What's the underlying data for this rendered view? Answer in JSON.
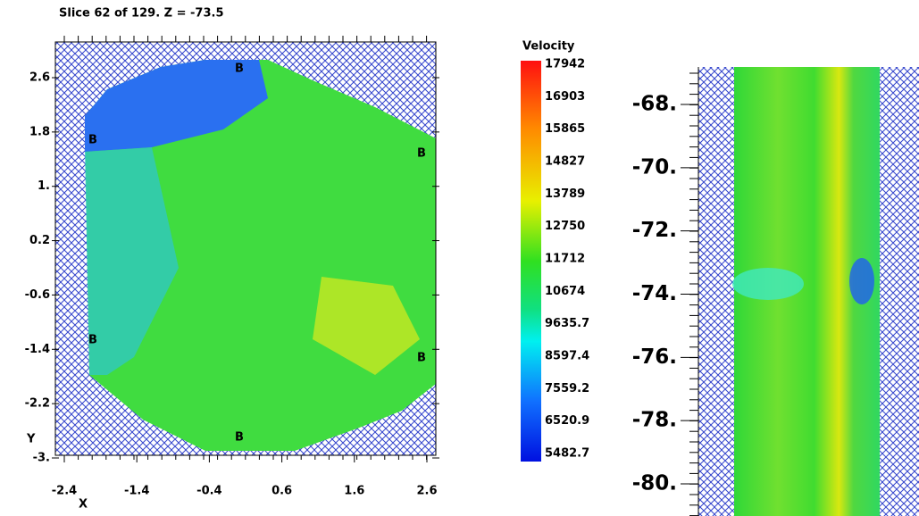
{
  "left_panel": {
    "title": "Slice 62 of 129.  Z = -73.5",
    "x_label": "X",
    "y_label": "Y",
    "x_ticks": [
      "-2.4",
      "-1.4",
      "-0.4",
      "0.6",
      "1.6",
      "2.6"
    ],
    "y_ticks": [
      "2.6",
      "1.8",
      "1.",
      "0.2",
      "-0.6",
      "-1.4",
      "-2.2",
      "-3."
    ],
    "markers": [
      "B",
      "B",
      "B",
      "B",
      "B",
      "B"
    ]
  },
  "colorbar": {
    "title": "Velocity",
    "labels": [
      "17942",
      "16903",
      "15865",
      "14827",
      "13789",
      "12750",
      "11712",
      "10674",
      "9635.7",
      "8597.4",
      "7559.2",
      "6520.9",
      "5482.7"
    ]
  },
  "right_panel": {
    "y_ticks": [
      "-68.",
      "-70.",
      "-72.",
      "-74.",
      "-76.",
      "-78.",
      "-80."
    ]
  }
}
